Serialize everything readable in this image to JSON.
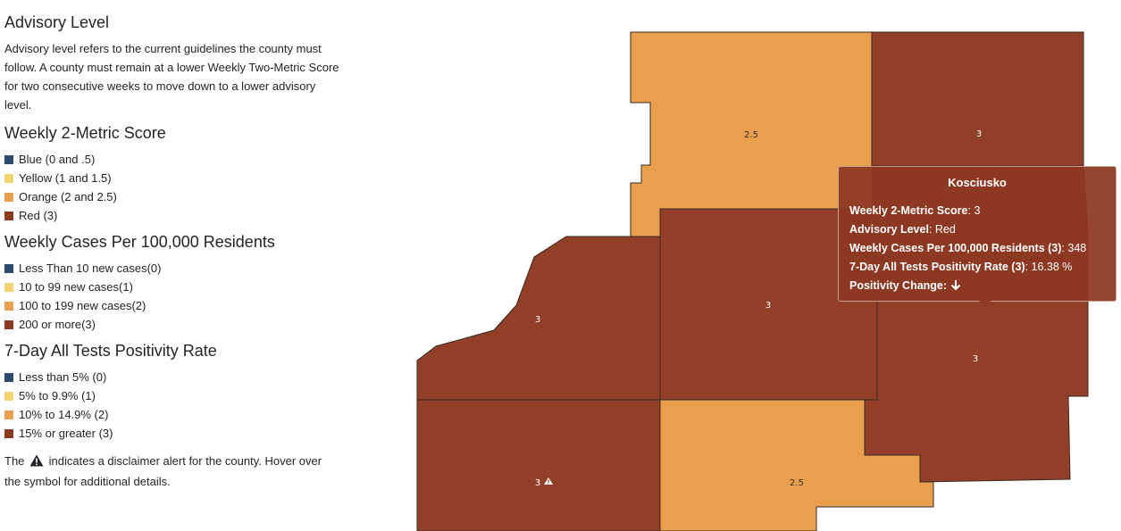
{
  "advisory": {
    "title": "Advisory Level",
    "description": "Advisory level refers to the current guidelines the county must follow. A county must remain at a lower Weekly Two-Metric Score for two consecutive weeks to move down to a lower advisory level."
  },
  "score_legend": {
    "title": "Weekly 2-Metric Score",
    "items": [
      {
        "label": "Blue (0 and .5)",
        "color": "#2e4a6e"
      },
      {
        "label": "Yellow (1 and 1.5)",
        "color": "#f5d36f"
      },
      {
        "label": "Orange (2 and 2.5)",
        "color": "#e8a04e"
      },
      {
        "label": "Red (3)",
        "color": "#8c3a22"
      }
    ]
  },
  "cases_legend": {
    "title": "Weekly Cases Per 100,000 Residents",
    "items": [
      {
        "label": "Less Than 10 new cases(0)",
        "color": "#2e4a6e"
      },
      {
        "label": "10 to 99 new cases(1)",
        "color": "#f5d36f"
      },
      {
        "label": "100 to 199 new cases(2)",
        "color": "#e8a04e"
      },
      {
        "label": "200 or more(3)",
        "color": "#8c3a22"
      }
    ]
  },
  "positivity_legend": {
    "title": "7-Day All Tests Positivity Rate",
    "items": [
      {
        "label": "Less than 5% (0)",
        "color": "#2e4a6e"
      },
      {
        "label": "5% to 9.9% (1)",
        "color": "#f5d36f"
      },
      {
        "label": "10% to 14.9% (2)",
        "color": "#e8a04e"
      },
      {
        "label": "15% or greater (3)",
        "color": "#8c3a22"
      }
    ]
  },
  "disclaimer": {
    "before": "The",
    "after": "indicates a disclaimer alert for the county. Hover over the symbol for additional details.",
    "icon": "warning-triangle-icon"
  },
  "map": {
    "colors": {
      "red": "#923f28",
      "orange": "#e8a04e"
    },
    "counties": [
      {
        "id": "north-west",
        "score": "2.5",
        "fill": "orange"
      },
      {
        "id": "north-east",
        "score": "3",
        "fill": "red"
      },
      {
        "id": "west",
        "score": "3",
        "fill": "red"
      },
      {
        "id": "center",
        "score": "3",
        "fill": "red"
      },
      {
        "id": "east",
        "score": "3",
        "fill": "red"
      },
      {
        "id": "south-west",
        "score": "3",
        "fill": "red",
        "alert": true
      },
      {
        "id": "south",
        "score": "2.5",
        "fill": "orange"
      }
    ]
  },
  "tooltip": {
    "county": "Kosciusko",
    "rows": [
      {
        "label": "Weekly 2-Metric Score",
        "value": "3"
      },
      {
        "label": "Advisory Level",
        "value": "Red"
      },
      {
        "label": "Weekly Cases Per 100,000 Residents (3)",
        "value": "348"
      },
      {
        "label": "7-Day All Tests Positivity Rate (3)",
        "value": "16.38 %"
      },
      {
        "label": "Positivity Change",
        "value": "",
        "icon": "arrow-down-icon"
      }
    ]
  }
}
